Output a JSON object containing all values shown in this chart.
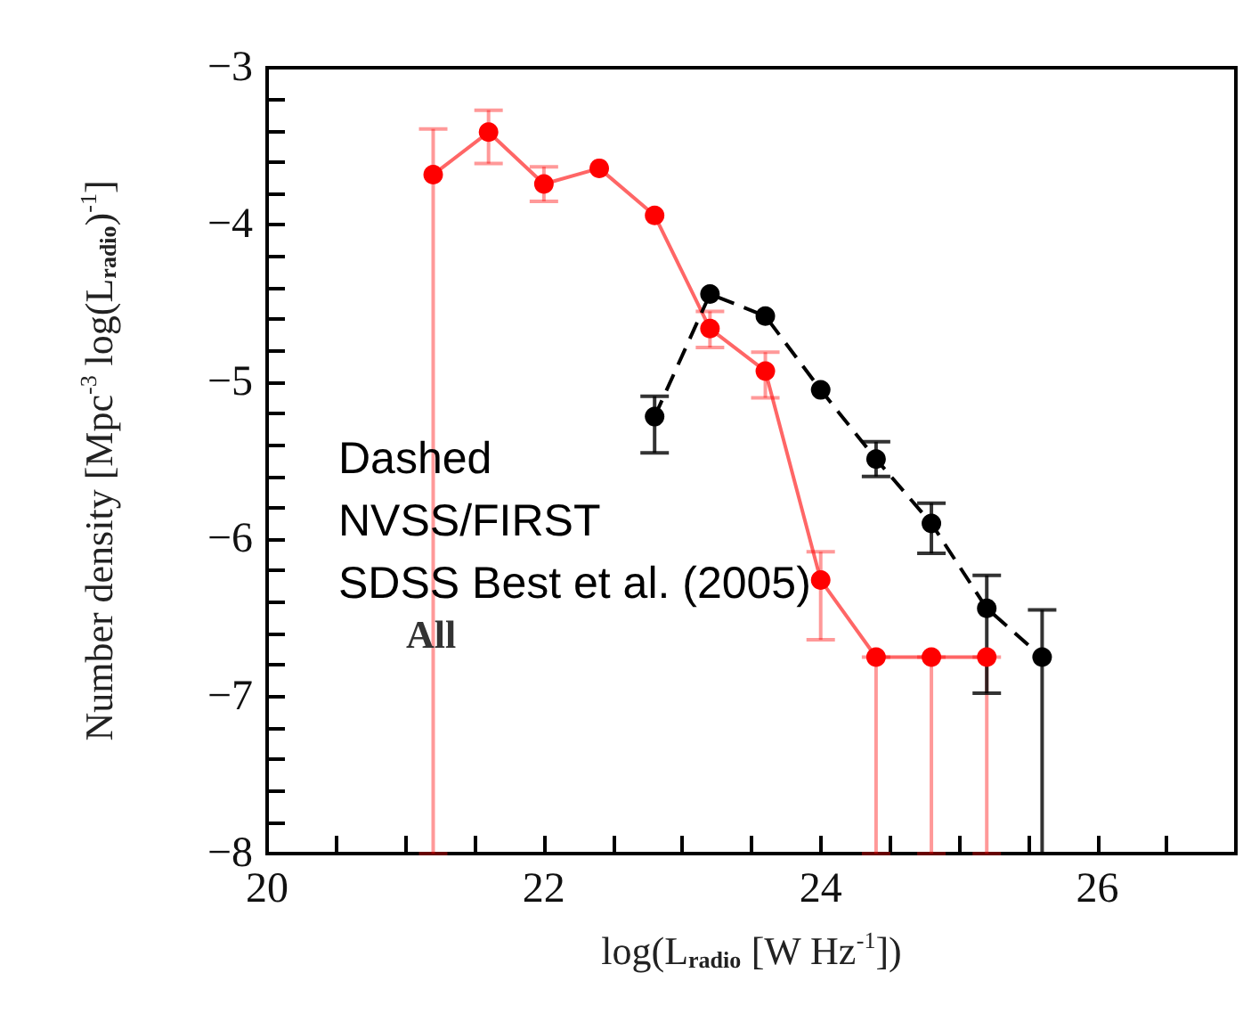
{
  "chart_data": {
    "type": "line",
    "xlabel": "log(L$_{radio}$ [W Hz$^{-1}$])",
    "ylabel": "Number density [Mpc$^{-3}$ log(L$_{radio}$)$^{-1}$]",
    "xlim": [
      20,
      27
    ],
    "xticks": [
      {
        "value": 20.5,
        "label": null
      },
      20,
      {
        "value": 21,
        "label": null
      },
      {
        "value": 21.5,
        "label": null
      },
      22,
      {
        "value": 22.5,
        "label": null
      },
      {
        "value": 23,
        "label": null
      },
      {
        "value": 23.5,
        "label": null
      },
      24,
      {
        "value": 24.5,
        "label": null
      },
      {
        "value": 25,
        "label": null
      },
      {
        "value": 25.5,
        "label": null
      },
      26,
      {
        "value": 26.5,
        "label": null
      }
    ],
    "ylim": [
      -8,
      -3
    ],
    "yticks": [
      -8,
      -7,
      -6,
      -5,
      -4,
      -3,
      {
        "value": -7.8,
        "label": null
      },
      {
        "value": -7.6,
        "label": null
      },
      {
        "value": -7.4,
        "label": null
      },
      {
        "value": -7.2,
        "label": null
      },
      {
        "value": -6.8,
        "label": null
      },
      {
        "value": -6.6,
        "label": null
      },
      {
        "value": -6.4,
        "label": null
      },
      {
        "value": -6.2,
        "label": null
      },
      {
        "value": -5.8,
        "label": null
      },
      {
        "value": -5.6,
        "label": null
      },
      {
        "value": -5.4,
        "label": null
      },
      {
        "value": -5.2,
        "label": null
      },
      {
        "value": -4.8,
        "label": null
      },
      {
        "value": -4.6,
        "label": null
      },
      {
        "value": -4.4,
        "label": null
      },
      {
        "value": -4.2,
        "label": null
      },
      {
        "value": -3.8,
        "label": null
      },
      {
        "value": -3.6,
        "label": null
      },
      {
        "value": -3.4,
        "label": null
      },
      {
        "value": -3.2,
        "label": null
      }
    ],
    "grid": false,
    "marker": "circle",
    "series": [
      {
        "color": "#ff0000",
        "line_style": "solid",
        "x": [
          21.2,
          21.6,
          22.0,
          22.4,
          22.8,
          23.2,
          23.6,
          24.0,
          24.4,
          24.8,
          25.2
        ],
        "values": [
          -3.68,
          -3.41,
          -3.74,
          -3.64,
          -3.94,
          -4.66,
          -4.93,
          -6.26,
          -6.75,
          -6.75,
          -6.75
        ],
        "errors": [
          [
            -8,
            -3.39
          ],
          [
            -3.61,
            -3.27
          ],
          [
            -3.85,
            -3.63
          ],
          null,
          null,
          [
            -4.78,
            -4.55
          ],
          [
            -5.1,
            -4.81
          ],
          [
            -6.64,
            -6.08
          ],
          [
            -8,
            -6.75
          ],
          [
            -8,
            -6.75
          ],
          [
            -8,
            -6.75
          ]
        ]
      },
      {
        "color": "#000000",
        "line_style": "dashed",
        "x": [
          22.8,
          23.2,
          23.6,
          24.0,
          24.4,
          24.8,
          25.2,
          25.6
        ],
        "values": [
          -5.22,
          -4.44,
          -4.58,
          -5.05,
          -5.49,
          -5.9,
          -6.44,
          -6.75
        ],
        "errors": [
          [
            -5.45,
            -5.09
          ],
          null,
          null,
          null,
          [
            -5.6,
            -5.38
          ],
          [
            -6.09,
            -5.77
          ],
          [
            -6.98,
            -6.23
          ],
          [
            -8,
            -6.45
          ]
        ]
      }
    ],
    "annotations": [
      "Dashed",
      "NVSS/FIRST",
      "SDSS Best et al. (2005)",
      "All"
    ]
  }
}
